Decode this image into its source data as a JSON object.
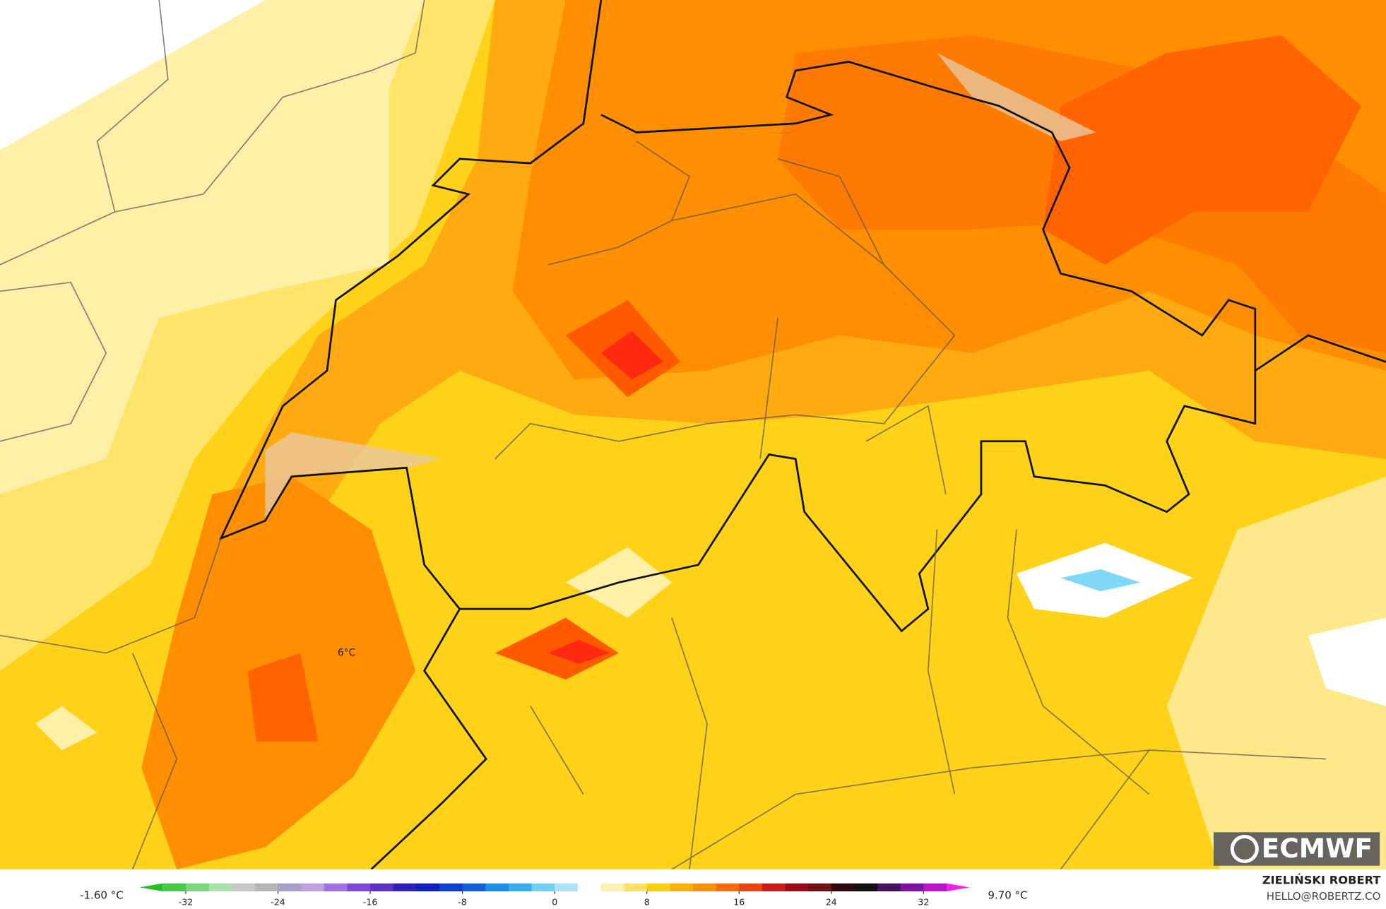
{
  "map": {
    "annotation": "6°C",
    "logo": "ECMWF",
    "legend": {
      "min_label": "-1.60 °C",
      "max_label": "9.70 °C",
      "lim": [
        -36,
        36
      ],
      "ticks": [
        -32,
        -24,
        -16,
        -8,
        0,
        8,
        16,
        24,
        32
      ],
      "colors": [
        "#22c022",
        "#44cc44",
        "#77d877",
        "#a8e4a8",
        "#c8c8c8",
        "#b4b4b4",
        "#a8a0c8",
        "#c0a0e0",
        "#a070e0",
        "#8048d8",
        "#6030c8",
        "#3020c0",
        "#1020c0",
        "#1040d0",
        "#1060e0",
        "#1890e8",
        "#30b0f0",
        "#70d0f8",
        "#a8e4fc",
        "#ffffff",
        "#fff2b0",
        "#ffe060",
        "#ffd000",
        "#ffb000",
        "#ff9000",
        "#ff6a00",
        "#f04010",
        "#d01818",
        "#a00818",
        "#701010",
        "#300810",
        "#101010",
        "#4a1060",
        "#8010a0",
        "#c010d0",
        "#f020f0"
      ]
    },
    "author": "ZIELIŃSKI ROBERT",
    "email": "HELLO@ROBERTZ.CO"
  }
}
